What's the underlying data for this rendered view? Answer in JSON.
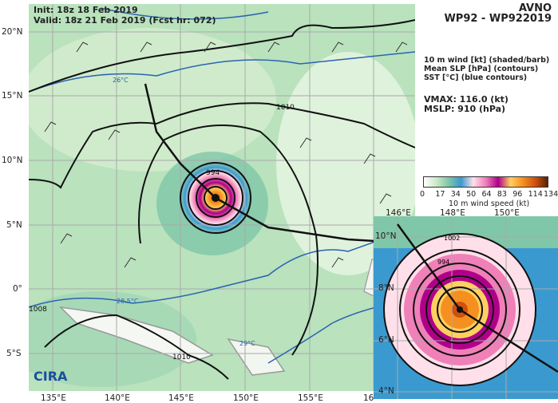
{
  "header": {
    "init": "Init:   18z 18 Feb 2019",
    "valid": "Valid: 18z 21 Feb 2019 (Fcst hr: 072)"
  },
  "title": {
    "model": "AVNO",
    "storm": "WP92 - WP922019"
  },
  "legend": {
    "line1": "10 m wind [kt] (shaded/barb)",
    "line2": "Mean SLP [hPa] (contours)",
    "line3": "SST [°C] (blue contours)"
  },
  "stats": {
    "vmax": "VMAX: 116.0 (kt)",
    "mslp": "MSLP:  910 (hPa)"
  },
  "colorbar": {
    "ticks": [
      "0",
      "17",
      "34",
      "50",
      "64",
      "83",
      "96",
      "114",
      "134"
    ],
    "label": "10 m wind speed (kt)",
    "colors": [
      "#ffffff",
      "#cde9c8",
      "#7fc7a8",
      "#3a9ad0",
      "#ffe0ea",
      "#f080b8",
      "#b0008a",
      "#ffd060",
      "#f59020",
      "#d05010",
      "#5a2000"
    ]
  },
  "main_map": {
    "lat_labels": [
      "20°N",
      "15°N",
      "10°N",
      "5°N",
      "0°",
      "5°S"
    ],
    "lon_labels": [
      "135°E",
      "140°E",
      "145°E",
      "150°E",
      "155°E",
      "16"
    ],
    "contour_labels": [
      "1010",
      "1010",
      "1008",
      "1010",
      "994",
      "1002",
      "998"
    ],
    "sst_labels": [
      "26°C",
      "28.5°C",
      "29°C"
    ],
    "logo": "CIRA"
  },
  "inset_map": {
    "lon_labels": [
      "146°E",
      "148°E",
      "150°E"
    ],
    "lat_labels": [
      "10°N",
      "8°N",
      "6°N",
      "4°N"
    ],
    "contour_labels": [
      "1002",
      "994",
      "986"
    ]
  }
}
